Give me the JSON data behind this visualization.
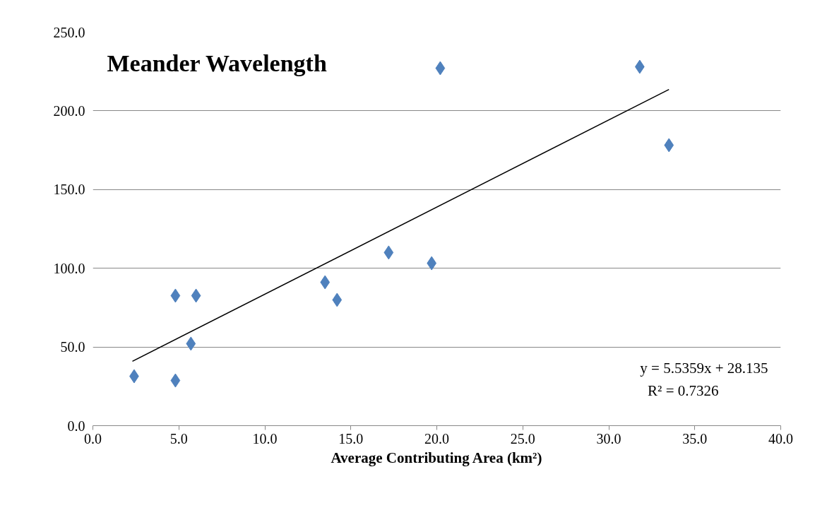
{
  "chart_data": {
    "type": "scatter",
    "title": "Meander Wavelength",
    "xlabel": "Average Contributing Area (km²)",
    "series": [
      {
        "color": "#4f81bd",
        "marker": "diamond",
        "x": [
          2.4,
          4.8,
          4.8,
          6.0,
          5.7,
          13.5,
          14.2,
          17.2,
          19.7,
          20.2,
          31.8,
          33.5
        ],
        "values": [
          31.4,
          28.7,
          82.6,
          82.6,
          52.1,
          91.1,
          79.9,
          110.0,
          103.2,
          227.1,
          228.0,
          178.2
        ]
      },
      {
        "type": "line",
        "color": "#000000",
        "marker": "none",
        "line_style": "solid",
        "x": [
          2.3,
          33.5
        ],
        "values": [
          40.9,
          213.6
        ]
      }
    ],
    "annotations": [
      "y = 5.5359x + 28.135",
      "R² = 0.7326"
    ],
    "xlim": [
      0,
      40
    ],
    "ylim": [
      0,
      250
    ],
    "xticks": [
      {
        "value": 0,
        "label": "0.0"
      },
      {
        "value": 5,
        "label": "5.0"
      },
      {
        "value": 10,
        "label": "10.0"
      },
      {
        "value": 15,
        "label": "15.0"
      },
      {
        "value": 20,
        "label": "20.0"
      },
      {
        "value": 25,
        "label": "25.0"
      },
      {
        "value": 30,
        "label": "30.0"
      },
      {
        "value": 35,
        "label": "35.0"
      },
      {
        "value": 40,
        "label": "40.0"
      }
    ],
    "yticks": [
      {
        "value": 0,
        "label": "0.0"
      },
      {
        "value": 50,
        "label": "50.0"
      },
      {
        "value": 100,
        "label": "100.0"
      },
      {
        "value": 150,
        "label": "150.0"
      },
      {
        "value": 200,
        "label": "200.0"
      },
      {
        "value": 250,
        "label": "250.0"
      }
    ],
    "grid": "y"
  }
}
